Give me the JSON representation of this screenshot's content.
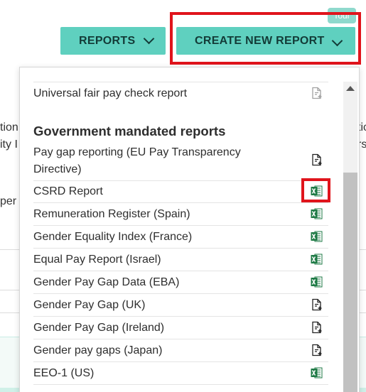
{
  "tour_label": "Tour",
  "toolbar": {
    "reports_label": "REPORTS",
    "create_label": "CREATE NEW REPORT"
  },
  "background": {
    "left_fragments": [
      "tion",
      "ity I",
      "per"
    ],
    "right_fragments": [
      "tici",
      "rs"
    ]
  },
  "dropdown": {
    "top_item": "Universal fair pay check report",
    "section_heading": "Government mandated reports",
    "items": [
      {
        "label": "Pay gap reporting (EU Pay Transparency Directive)",
        "icon": "document-add-icon"
      },
      {
        "label": "CSRD Report",
        "icon": "excel-icon"
      },
      {
        "label": "Remuneration Register (Spain)",
        "icon": "excel-icon"
      },
      {
        "label": "Gender Equality Index (France)",
        "icon": "excel-icon"
      },
      {
        "label": "Equal Pay Report (Israel)",
        "icon": "excel-icon"
      },
      {
        "label": "Gender Pay Gap Data (EBA)",
        "icon": "excel-icon"
      },
      {
        "label": "Gender Pay Gap (UK)",
        "icon": "document-add-icon"
      },
      {
        "label": "Gender Pay Gap (Ireland)",
        "icon": "document-add-icon"
      },
      {
        "label": "Gender pay gaps (Japan)",
        "icon": "document-add-icon"
      },
      {
        "label": "EEO-1 (US)",
        "icon": "excel-icon"
      }
    ]
  },
  "colors": {
    "accent": "#5fd0bf",
    "highlight": "#e0141c",
    "excel_green": "#1e7a45"
  }
}
